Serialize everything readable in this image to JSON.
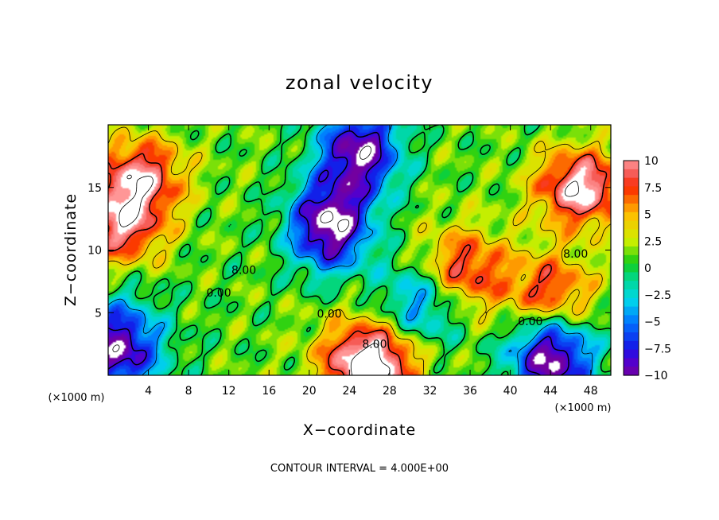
{
  "chart_data": {
    "type": "heatmap",
    "title": "zonal velocity",
    "xlabel": "X−coordinate",
    "ylabel": "Z−coordinate",
    "x_unit_label": "(×1000 m)",
    "y_unit_label": "(×1000 m)",
    "xlim": [
      0,
      50
    ],
    "ylim": [
      0,
      20
    ],
    "x_ticks": [
      4,
      8,
      12,
      16,
      20,
      24,
      28,
      32,
      36,
      40,
      44,
      48
    ],
    "y_ticks": [
      5,
      10,
      15
    ],
    "colorbar": {
      "min": -10,
      "max": 10,
      "tick_values": [
        10,
        7.5,
        5,
        2.5,
        0,
        -2.5,
        -5,
        -7.5,
        -10
      ],
      "tick_labels": [
        "10",
        "7.5",
        "5",
        "2.5",
        "0",
        "−2.5",
        "−5",
        "−7.5",
        "−10"
      ]
    },
    "contour_interval_text": "CONTOUR INTERVAL = 4.000E+00",
    "contour_labels": [
      {
        "text": "8.00",
        "x": 13.5,
        "y": 8.1
      },
      {
        "text": "0.00",
        "x": 11.0,
        "y": 6.3
      },
      {
        "text": "0.00",
        "x": 22.0,
        "y": 4.6
      },
      {
        "text": "8.00",
        "x": 26.5,
        "y": 2.2
      },
      {
        "text": "8.00",
        "x": 46.5,
        "y": 9.4
      },
      {
        "text": "0.00",
        "x": 42.0,
        "y": 4.0
      }
    ],
    "features": [
      {
        "kind": "max",
        "x": 3,
        "y": 16,
        "value": 9
      },
      {
        "kind": "max",
        "x": 1,
        "y": 12,
        "value": 9
      },
      {
        "kind": "max",
        "x": 47,
        "y": 15,
        "value": 11
      },
      {
        "kind": "max",
        "x": 26,
        "y": 1,
        "value": 13
      },
      {
        "kind": "max",
        "x": 35,
        "y": 8.5,
        "value": 8
      },
      {
        "kind": "max",
        "x": 44,
        "y": 6.5,
        "value": 8
      },
      {
        "kind": "min",
        "x": 22,
        "y": 12,
        "value": -13
      },
      {
        "kind": "min",
        "x": 25,
        "y": 18,
        "value": -12
      },
      {
        "kind": "min",
        "x": 44,
        "y": 1.5,
        "value": -12
      },
      {
        "kind": "min",
        "x": 1,
        "y": 2.2,
        "value": -11
      },
      {
        "kind": "min",
        "x": 31,
        "y": 6,
        "value": -7
      }
    ]
  }
}
